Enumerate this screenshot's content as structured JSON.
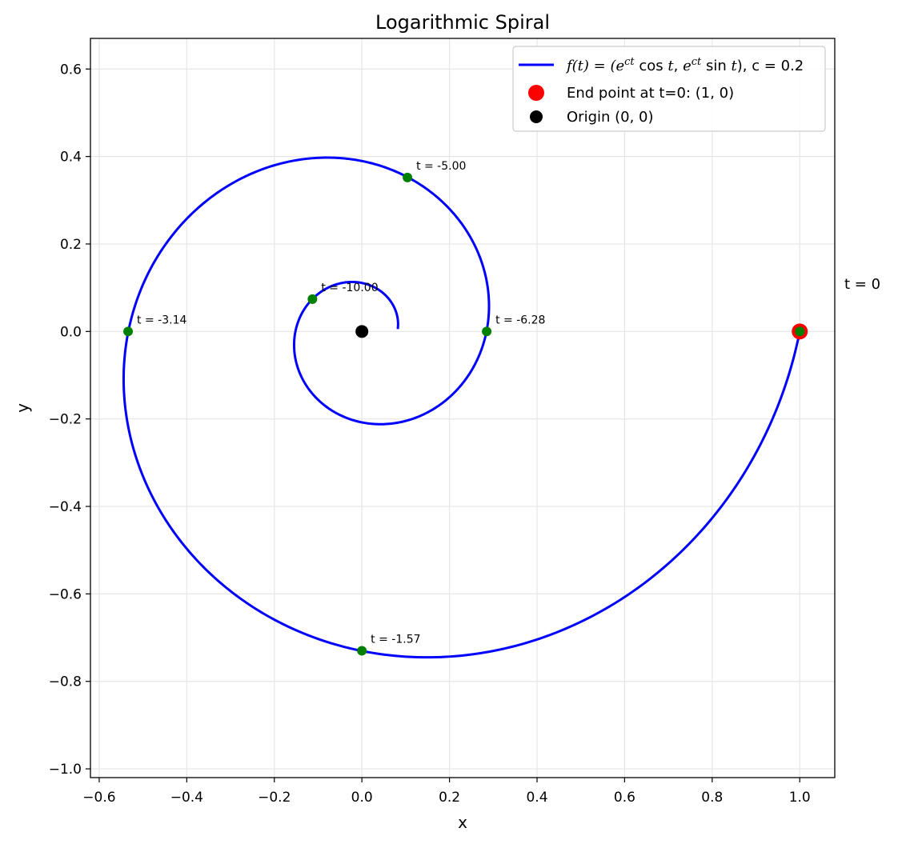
{
  "chart_data": {
    "type": "line",
    "title": "Logarithmic Spiral",
    "xlabel": "x",
    "ylabel": "y",
    "xlim": [
      -0.62,
      1.08
    ],
    "ylim": [
      -1.02,
      0.67
    ],
    "xticks": [
      -0.6,
      -0.4,
      -0.2,
      0.0,
      0.2,
      0.4,
      0.6,
      0.8,
      1.0
    ],
    "xtick_labels": [
      "−0.6",
      "−0.4",
      "−0.2",
      "0.0",
      "0.2",
      "0.4",
      "0.6",
      "0.8",
      "1.0"
    ],
    "yticks": [
      -1.0,
      -0.8,
      -0.6,
      -0.4,
      -0.2,
      0.0,
      0.2,
      0.4,
      0.6
    ],
    "ytick_labels": [
      "−1.0",
      "−0.8",
      "−0.6",
      "−0.4",
      "−0.2",
      "0.0",
      "0.2",
      "0.4",
      "0.6"
    ],
    "grid": true,
    "legend_position": "top-right",
    "spiral": {
      "c": 0.2,
      "t_range": [
        -12.5,
        0
      ],
      "color": "#0000ff"
    },
    "marked_points": [
      {
        "t": -1.57,
        "label": "t = -1.57",
        "x": 0.0,
        "y": -0.73
      },
      {
        "t": -3.14,
        "label": "t = -3.14",
        "x": -0.534,
        "y": 0.0
      },
      {
        "t": -5.0,
        "label": "t = -5.00",
        "x": 0.104,
        "y": 0.352
      },
      {
        "t": -6.28,
        "label": "t = -6.28",
        "x": 0.285,
        "y": 0.0
      },
      {
        "t": -10.0,
        "label": "t = -10.00",
        "x": -0.113,
        "y": 0.074
      },
      {
        "t": 0.0,
        "label": "",
        "x": 1.0,
        "y": 0.0
      }
    ],
    "marked_point_color": "#008000",
    "end_point": {
      "x": 1.0,
      "y": 0.0,
      "color": "#ff0000"
    },
    "origin_point": {
      "x": 0.0,
      "y": 0.0,
      "color": "#000000"
    },
    "side_annotation": "t = 0",
    "legend": [
      {
        "kind": "line",
        "color": "#0000ff",
        "math_prefix": "f(t) = (e",
        "suffix": ", c = 0.2"
      },
      {
        "kind": "marker",
        "color": "#ff0000",
        "label": "End point at t=0: (1, 0)"
      },
      {
        "kind": "marker",
        "color": "#000000",
        "label": "Origin (0, 0)"
      }
    ]
  }
}
